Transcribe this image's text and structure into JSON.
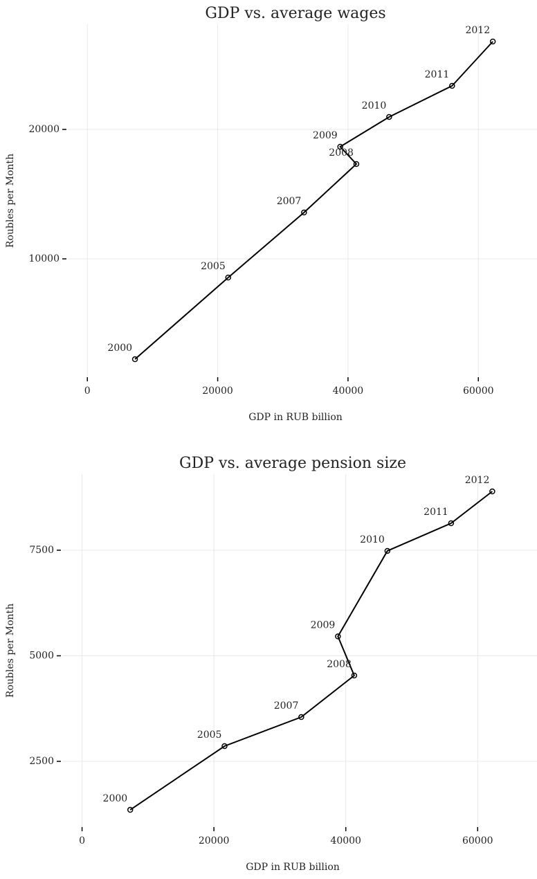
{
  "chart_data": [
    {
      "type": "line",
      "title": "GDP vs. average wages",
      "x_label": "GDP in RUB billion",
      "y_label": "Roubles per Month",
      "x": [
        7306,
        21610,
        33248,
        41277,
        38807,
        46309,
        55967,
        62218
      ],
      "point_labels": [
        "2000",
        "2005",
        "2007",
        "2008",
        "2009",
        "2010",
        "2011",
        "2012"
      ],
      "series": [
        {
          "name": "Wages",
          "color": "#000000",
          "values": [
            2246,
            8556,
            13583,
            17326,
            18663,
            20963,
            23369,
            26791
          ]
        }
      ],
      "xlim": [
        -3000,
        69000
      ],
      "xticks": [
        0,
        20000,
        40000,
        60000
      ],
      "ylim": [
        856,
        28128
      ],
      "yticks": [
        10000,
        20000
      ],
      "grid": true
    },
    {
      "type": "line",
      "title": "GDP vs. average pension size",
      "x_label": "GDP in RUB billion",
      "y_label": "Roubles per Month",
      "x": [
        7306,
        21610,
        33248,
        41277,
        38807,
        46309,
        55967,
        62218
      ],
      "point_labels": [
        "2000",
        "2005",
        "2007",
        "2008",
        "2009",
        "2010",
        "2011",
        "2012"
      ],
      "series": [
        {
          "name": "Pension",
          "color": "#000000",
          "values": [
            1352,
            2861,
            3549,
            4533,
            5459,
            7484,
            8139,
            8893
          ]
        }
      ],
      "xlim": [
        -3000,
        69000
      ],
      "xticks": [
        0,
        20000,
        40000,
        60000
      ],
      "ylim": [
        943,
        9303
      ],
      "yticks": [
        2500,
        5000,
        7500
      ],
      "grid": true
    }
  ]
}
